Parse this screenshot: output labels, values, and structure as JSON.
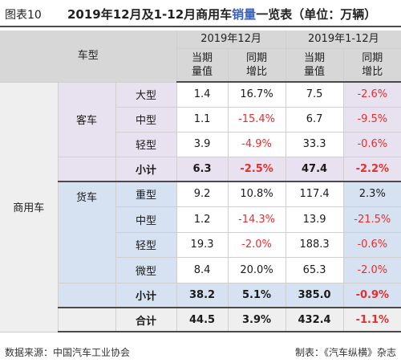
{
  "figure_label": "图表10",
  "title": {
    "before": "2019年12月及1-12月商用车",
    "highlight": "销量",
    "after": "一览表（单位：万辆）"
  },
  "headers": {
    "vehicle_type": "车型",
    "period_month": "2019年12月",
    "period_ytd": "2019年1-12月",
    "current_volume": "当期\n量值",
    "yoy_growth": "同期\n增比"
  },
  "groups": {
    "commercial": "商用车",
    "bus": "客车",
    "truck": "货车"
  },
  "bus_rows": [
    {
      "name": "大型",
      "m_vol": "1.4",
      "m_yoy": "16.7%",
      "y_vol": "7.5",
      "y_yoy": "-2.6%"
    },
    {
      "name": "中型",
      "m_vol": "1.1",
      "m_yoy": "-15.4%",
      "y_vol": "6.7",
      "y_yoy": "-9.5%"
    },
    {
      "name": "轻型",
      "m_vol": "3.9",
      "m_yoy": "-4.9%",
      "y_vol": "33.3",
      "y_yoy": "-0.6%"
    },
    {
      "name": "小计",
      "m_vol": "6.3",
      "m_yoy": "-2.5%",
      "y_vol": "47.4",
      "y_yoy": "-2.2%"
    }
  ],
  "truck_rows": [
    {
      "name": "重型",
      "m_vol": "9.2",
      "m_yoy": "10.8%",
      "y_vol": "117.4",
      "y_yoy": "2.3%"
    },
    {
      "name": "中型",
      "m_vol": "1.2",
      "m_yoy": "-14.3%",
      "y_vol": "13.9",
      "y_yoy": "-21.5%"
    },
    {
      "name": "轻型",
      "m_vol": "19.3",
      "m_yoy": "-2.0%",
      "y_vol": "188.3",
      "y_yoy": "-0.6%"
    },
    {
      "name": "微型",
      "m_vol": "8.4",
      "m_yoy": "20.0%",
      "y_vol": "65.3",
      "y_yoy": "-2.0%"
    },
    {
      "name": "小计",
      "m_vol": "38.2",
      "m_yoy": "5.1%",
      "y_vol": "385.0",
      "y_yoy": "-0.9%"
    }
  ],
  "total_row": {
    "name": "合计",
    "m_vol": "44.5",
    "m_yoy": "3.9%",
    "y_vol": "432.4",
    "y_yoy": "-1.1%"
  },
  "footer": {
    "source": "数据来源：中国汽车工业协会",
    "maker": "制表：《汽车纵横》杂志"
  },
  "colors": {
    "header_bg": "#d7d7d7",
    "bus_bg": "#e8e1ef",
    "truck_bg": "#d6e2f1",
    "negative": "#e03030",
    "highlight": "#3a5fb5"
  }
}
